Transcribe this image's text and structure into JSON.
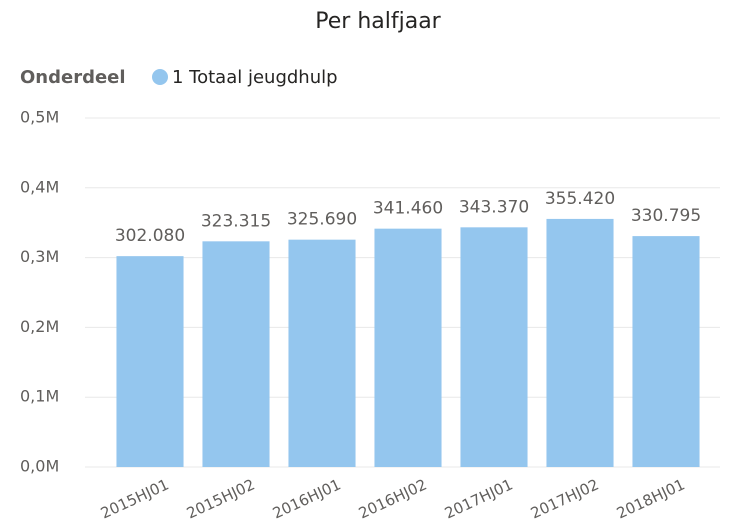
{
  "chart_data": {
    "type": "bar",
    "title": "Per halfjaar",
    "legend_title": "Onderdeel",
    "series": [
      {
        "name": "1 Totaal jeugdhulp",
        "color": "#94c6ee",
        "values": [
          302080,
          323315,
          325690,
          341460,
          343370,
          355420,
          330795
        ],
        "value_labels": [
          "302.080",
          "323.315",
          "325.690",
          "341.460",
          "343.370",
          "355.420",
          "330.795"
        ]
      }
    ],
    "categories": [
      "2015HJ01",
      "2015HJ02",
      "2016HJ01",
      "2016HJ02",
      "2017HJ01",
      "2017HJ02",
      "2018HJ01"
    ],
    "ylim": [
      0,
      500000
    ],
    "yticks": [
      {
        "value": 0,
        "label": "0,0M"
      },
      {
        "value": 100000,
        "label": "0,1M"
      },
      {
        "value": 200000,
        "label": "0,2M"
      },
      {
        "value": 300000,
        "label": "0,3M"
      },
      {
        "value": 400000,
        "label": "0,4M"
      },
      {
        "value": 500000,
        "label": "0,5M"
      }
    ],
    "grid": true
  }
}
